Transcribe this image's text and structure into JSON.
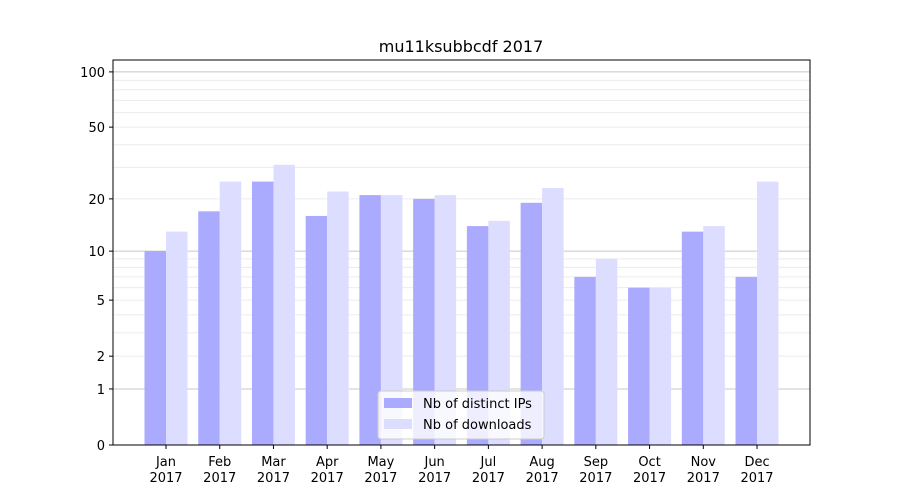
{
  "chart_data": {
    "type": "bar",
    "title": "mu11ksubbcdf 2017",
    "xlabel": "",
    "ylabel": "",
    "yscale": "log(y+1)",
    "ylim": [
      0,
      116
    ],
    "yticks": [
      0,
      1,
      2,
      5,
      10,
      20,
      50,
      100
    ],
    "grid": true,
    "legend_position": "bottom-center",
    "categories": [
      "Jan\n2017",
      "Feb\n2017",
      "Mar\n2017",
      "Apr\n2017",
      "May\n2017",
      "Jun\n2017",
      "Jul\n2017",
      "Aug\n2017",
      "Sep\n2017",
      "Oct\n2017",
      "Nov\n2017",
      "Dec\n2017"
    ],
    "series": [
      {
        "name": "Nb of distinct IPs",
        "color": "#aaaaff",
        "values": [
          10,
          17,
          25,
          16,
          21,
          20,
          14,
          19,
          7,
          6,
          13,
          7
        ]
      },
      {
        "name": "Nb of downloads",
        "color": "#ddddff",
        "values": [
          13,
          25,
          31,
          22,
          21,
          21,
          15,
          23,
          9,
          6,
          14,
          25
        ]
      }
    ]
  }
}
